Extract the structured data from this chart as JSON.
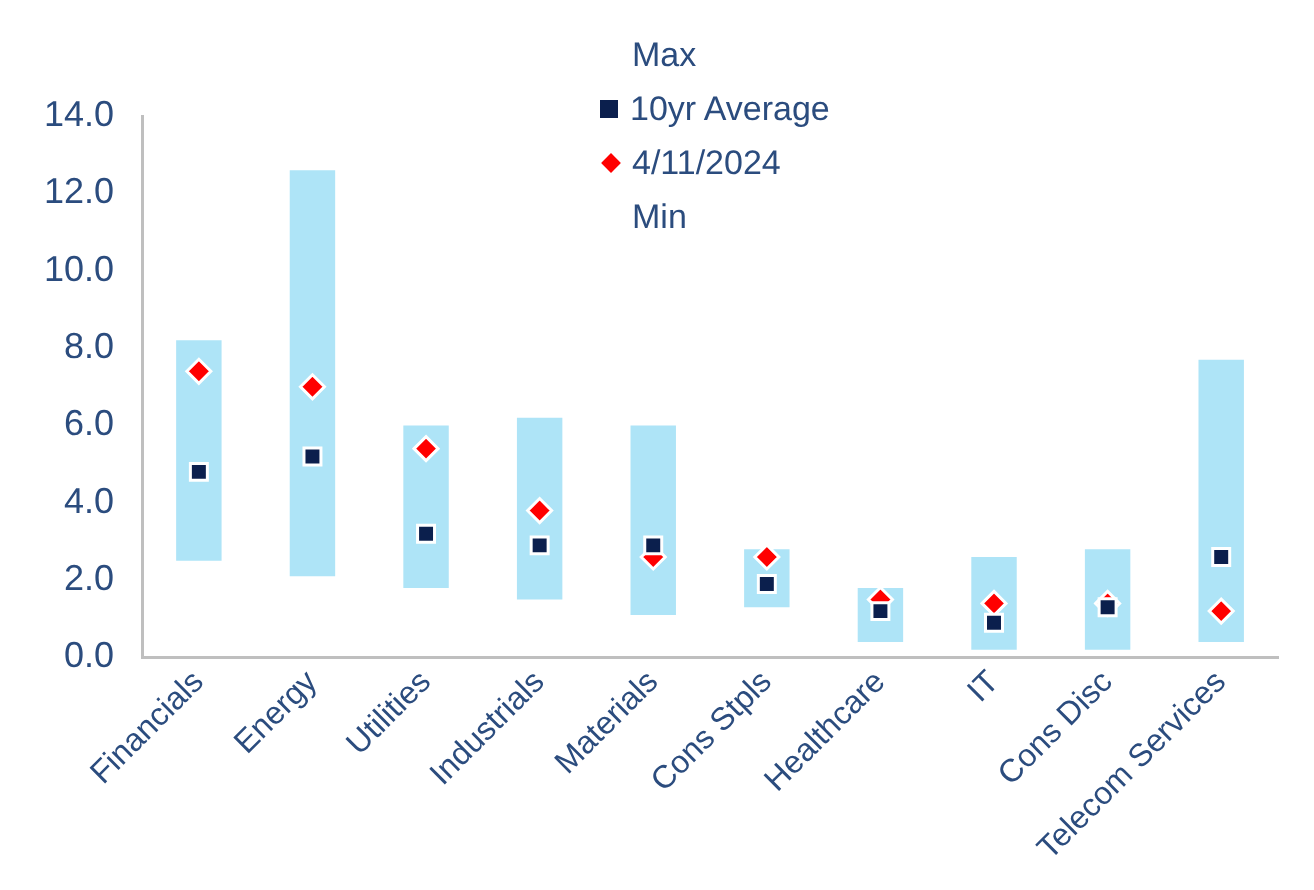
{
  "chart_data": {
    "type": "bar",
    "categories": [
      "Financials",
      "Energy",
      "Utilities",
      "Industrials",
      "Materials",
      "Cons Stpls",
      "Healthcare",
      "IT",
      "Cons Disc",
      "Telecom Services"
    ],
    "series": [
      {
        "color": "#aee4f7",
        "base": [
          2.5,
          2.1,
          1.8,
          1.5,
          1.1,
          1.3,
          0.4,
          0.2,
          0.2,
          0.4
        ],
        "values": [
          5.7,
          10.5,
          4.2,
          4.7,
          4.9,
          1.5,
          1.4,
          2.4,
          2.6,
          7.3
        ]
      },
      {
        "name": "10yr Average",
        "type": "scatter",
        "marker": "square",
        "color": "#0b1f4d",
        "values": [
          4.8,
          5.2,
          3.2,
          2.9,
          2.9,
          1.9,
          1.2,
          0.9,
          1.3,
          2.6
        ]
      },
      {
        "name": "4/11/2024",
        "type": "scatter",
        "marker": "diamond",
        "color": "#ff0000",
        "values": [
          7.4,
          7.0,
          5.4,
          3.8,
          2.6,
          2.6,
          1.5,
          1.4,
          1.4,
          1.2
        ]
      }
    ],
    "annotations": [
      "Max",
      "Min"
    ],
    "ylim": [
      0,
      14
    ],
    "yticks": [
      {
        "value": 0,
        "label": "0.0"
      },
      {
        "value": 2,
        "label": "2.0"
      },
      {
        "value": 4,
        "label": "4.0"
      },
      {
        "value": 6,
        "label": "6.0"
      },
      {
        "value": 8,
        "label": "8.0"
      },
      {
        "value": 10,
        "label": "10.0"
      },
      {
        "value": 12,
        "label": "12.0"
      },
      {
        "value": 14,
        "label": "14.0"
      }
    ],
    "grid": false,
    "legend": "top"
  }
}
